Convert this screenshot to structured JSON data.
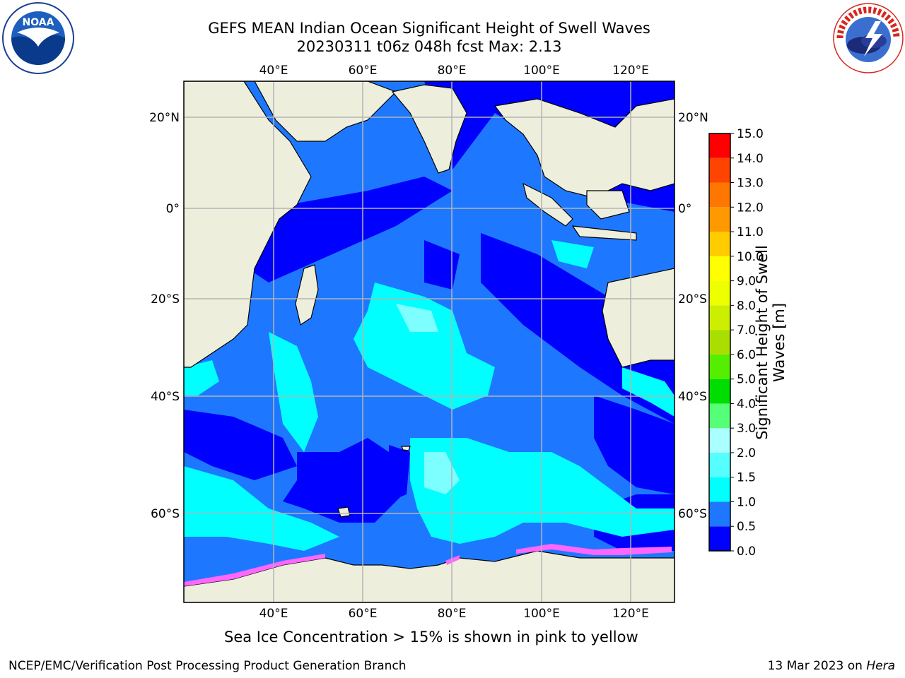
{
  "title": {
    "line1": "GEFS MEAN Indian Ocean Significant Height of Swell Waves",
    "line2": "20230311 t06z 048h fcst   Max: 2.13"
  },
  "map": {
    "lon_ticks_top": [
      "40°E",
      "60°E",
      "80°E",
      "100°E",
      "120°E"
    ],
    "lon_ticks_bottom": [
      "40°E",
      "60°E",
      "80°E",
      "100°E",
      "120°E"
    ],
    "lat_ticks_left": [
      "20°N",
      "0°",
      "20°S",
      "40°S",
      "60°S"
    ],
    "lat_ticks_right": [
      "20°N",
      "0°",
      "20°S",
      "40°S",
      "60°S"
    ],
    "colors": {
      "land": "#eeeedd",
      "ocean_0_05": "#0000ff",
      "ocean_05_10": "#1e78ff",
      "ocean_10_15": "#00ffff",
      "ocean_15_20": "#7dffff",
      "sea_ice": "#ff66ff",
      "grid": "#b4b4b4"
    }
  },
  "colorbar": {
    "label_line1": "Significant Height of Swell",
    "label_line2": "Waves [m]",
    "tick_labels": [
      "0.0",
      "0.5",
      "1.0",
      "1.5",
      "2.0",
      "3.0",
      "4.0",
      "5.0",
      "6.0",
      "7.0",
      "8.0",
      "9.0",
      "10.0",
      "11.0",
      "12.0",
      "13.0",
      "14.0",
      "15.0"
    ],
    "bin_colors": [
      "#0000ff",
      "#1e78ff",
      "#00ffff",
      "#55ffff",
      "#aaffff",
      "#55ff77",
      "#00dd00",
      "#55ee00",
      "#aadd00",
      "#ccee00",
      "#eeff00",
      "#ffff00",
      "#ffcc00",
      "#ff9900",
      "#ff7700",
      "#ff4400",
      "#ff0000"
    ]
  },
  "ice_note": "Sea Ice Concentration > 15% is shown in pink to yellow",
  "footer": {
    "left": "NCEP/EMC/Verification Post Processing Product Generation Branch",
    "date": "13 Mar 2023 on ",
    "machine": "Hera"
  },
  "logos": {
    "left": "noaa-logo-icon",
    "right": "nws-logo-icon"
  }
}
